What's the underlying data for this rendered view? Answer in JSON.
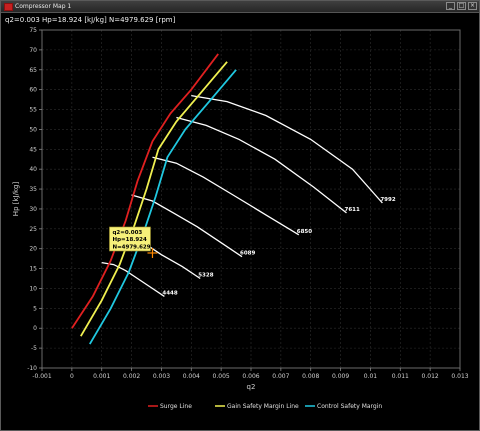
{
  "window": {
    "title": "Compressor Map 1",
    "controls": [
      "minimize",
      "maximize",
      "close"
    ]
  },
  "readout": "q2=0.003  Hp=18.924 [kJ/kg] N=4979.629 [rpm]",
  "tooltip": {
    "lines": [
      "q2=0.003",
      "Hp=18.924",
      "N=4979.629"
    ],
    "x": 0.0027,
    "y": 18.924
  },
  "colors": {
    "surge": "#e02020",
    "gain": "#f0f050",
    "control": "#20c8e0",
    "speed": "#ffffff",
    "marker": "#ff8800",
    "tooltip_bg": "#f6f07a"
  },
  "chart_data": {
    "type": "line",
    "title": "",
    "xlabel": "q2",
    "ylabel": "Hp [kJ/kg]",
    "xlim": [
      -0.001,
      0.013
    ],
    "ylim": [
      -10,
      75
    ],
    "grid": true,
    "x_ticks": [
      "-0.001",
      "0",
      "0.001",
      "0.002",
      "0.003",
      "0.004",
      "0.005",
      "0.006",
      "0.007",
      "0.008",
      "0.009",
      "0.01",
      "0.011",
      "0.012",
      "0.013"
    ],
    "x_tick_values": [
      -0.001,
      0,
      0.001,
      0.002,
      0.003,
      0.004,
      0.005,
      0.006,
      0.007,
      0.008,
      0.009,
      0.01,
      0.011,
      0.012,
      0.013
    ],
    "y_ticks": [
      "-10",
      "-5",
      "0",
      "5",
      "10",
      "15",
      "20",
      "25",
      "30",
      "35",
      "40",
      "45",
      "50",
      "55",
      "60",
      "65",
      "70",
      "75"
    ],
    "y_tick_values": [
      -10,
      -5,
      0,
      5,
      10,
      15,
      20,
      25,
      30,
      35,
      40,
      45,
      50,
      55,
      60,
      65,
      70,
      75
    ],
    "legend_position": "bottom",
    "series": [
      {
        "name": "Surge Line",
        "color": "#e02020",
        "x": [
          0.0,
          0.0007,
          0.0013,
          0.0018,
          0.0022,
          0.0027,
          0.0033,
          0.004,
          0.0049
        ],
        "y": [
          0,
          8,
          17,
          27,
          37,
          47,
          54,
          60,
          69
        ]
      },
      {
        "name": "Gain Safety Margin Line",
        "color": "#f0f050",
        "x": [
          0.0003,
          0.001,
          0.0016,
          0.0021,
          0.0025,
          0.0029,
          0.0035,
          0.0043,
          0.0052
        ],
        "y": [
          -2,
          7,
          16,
          26,
          35,
          45,
          52,
          59,
          67
        ]
      },
      {
        "name": "Control Safety Margin",
        "color": "#20c8e0",
        "x": [
          0.0006,
          0.0013,
          0.0019,
          0.0024,
          0.0028,
          0.0032,
          0.0038,
          0.0046,
          0.0055
        ],
        "y": [
          -4,
          5,
          14,
          24,
          33,
          43,
          50,
          57,
          65
        ]
      }
    ],
    "speed_lines": [
      {
        "label": "4448",
        "x": [
          0.001,
          0.0014,
          0.0018,
          0.0022,
          0.0026,
          0.0031
        ],
        "y": [
          16.5,
          16,
          14.5,
          12.5,
          10.5,
          8
        ]
      },
      {
        "label": "5328",
        "x": [
          0.0014,
          0.0019,
          0.0024,
          0.003,
          0.0037,
          0.0043
        ],
        "y": [
          25,
          24,
          21.5,
          18.5,
          15.5,
          12.5
        ]
      },
      {
        "label": "6089",
        "x": [
          0.002,
          0.0027,
          0.0034,
          0.0042,
          0.005,
          0.0057
        ],
        "y": [
          33.5,
          32,
          29,
          25.5,
          21.5,
          18
        ]
      },
      {
        "label": "6850",
        "x": [
          0.0027,
          0.0035,
          0.0044,
          0.0054,
          0.0065,
          0.0076
        ],
        "y": [
          43,
          41.5,
          38,
          33.5,
          28.5,
          23.5
        ]
      },
      {
        "label": "7611",
        "x": [
          0.0035,
          0.0045,
          0.0056,
          0.0068,
          0.0081,
          0.0092
        ],
        "y": [
          53,
          51,
          47.5,
          42.5,
          35.5,
          29
        ]
      },
      {
        "label": "7992",
        "x": [
          0.004,
          0.0052,
          0.0065,
          0.008,
          0.0094,
          0.0104
        ],
        "y": [
          58.5,
          57,
          53.5,
          47.5,
          40,
          31.5
        ]
      }
    ]
  }
}
